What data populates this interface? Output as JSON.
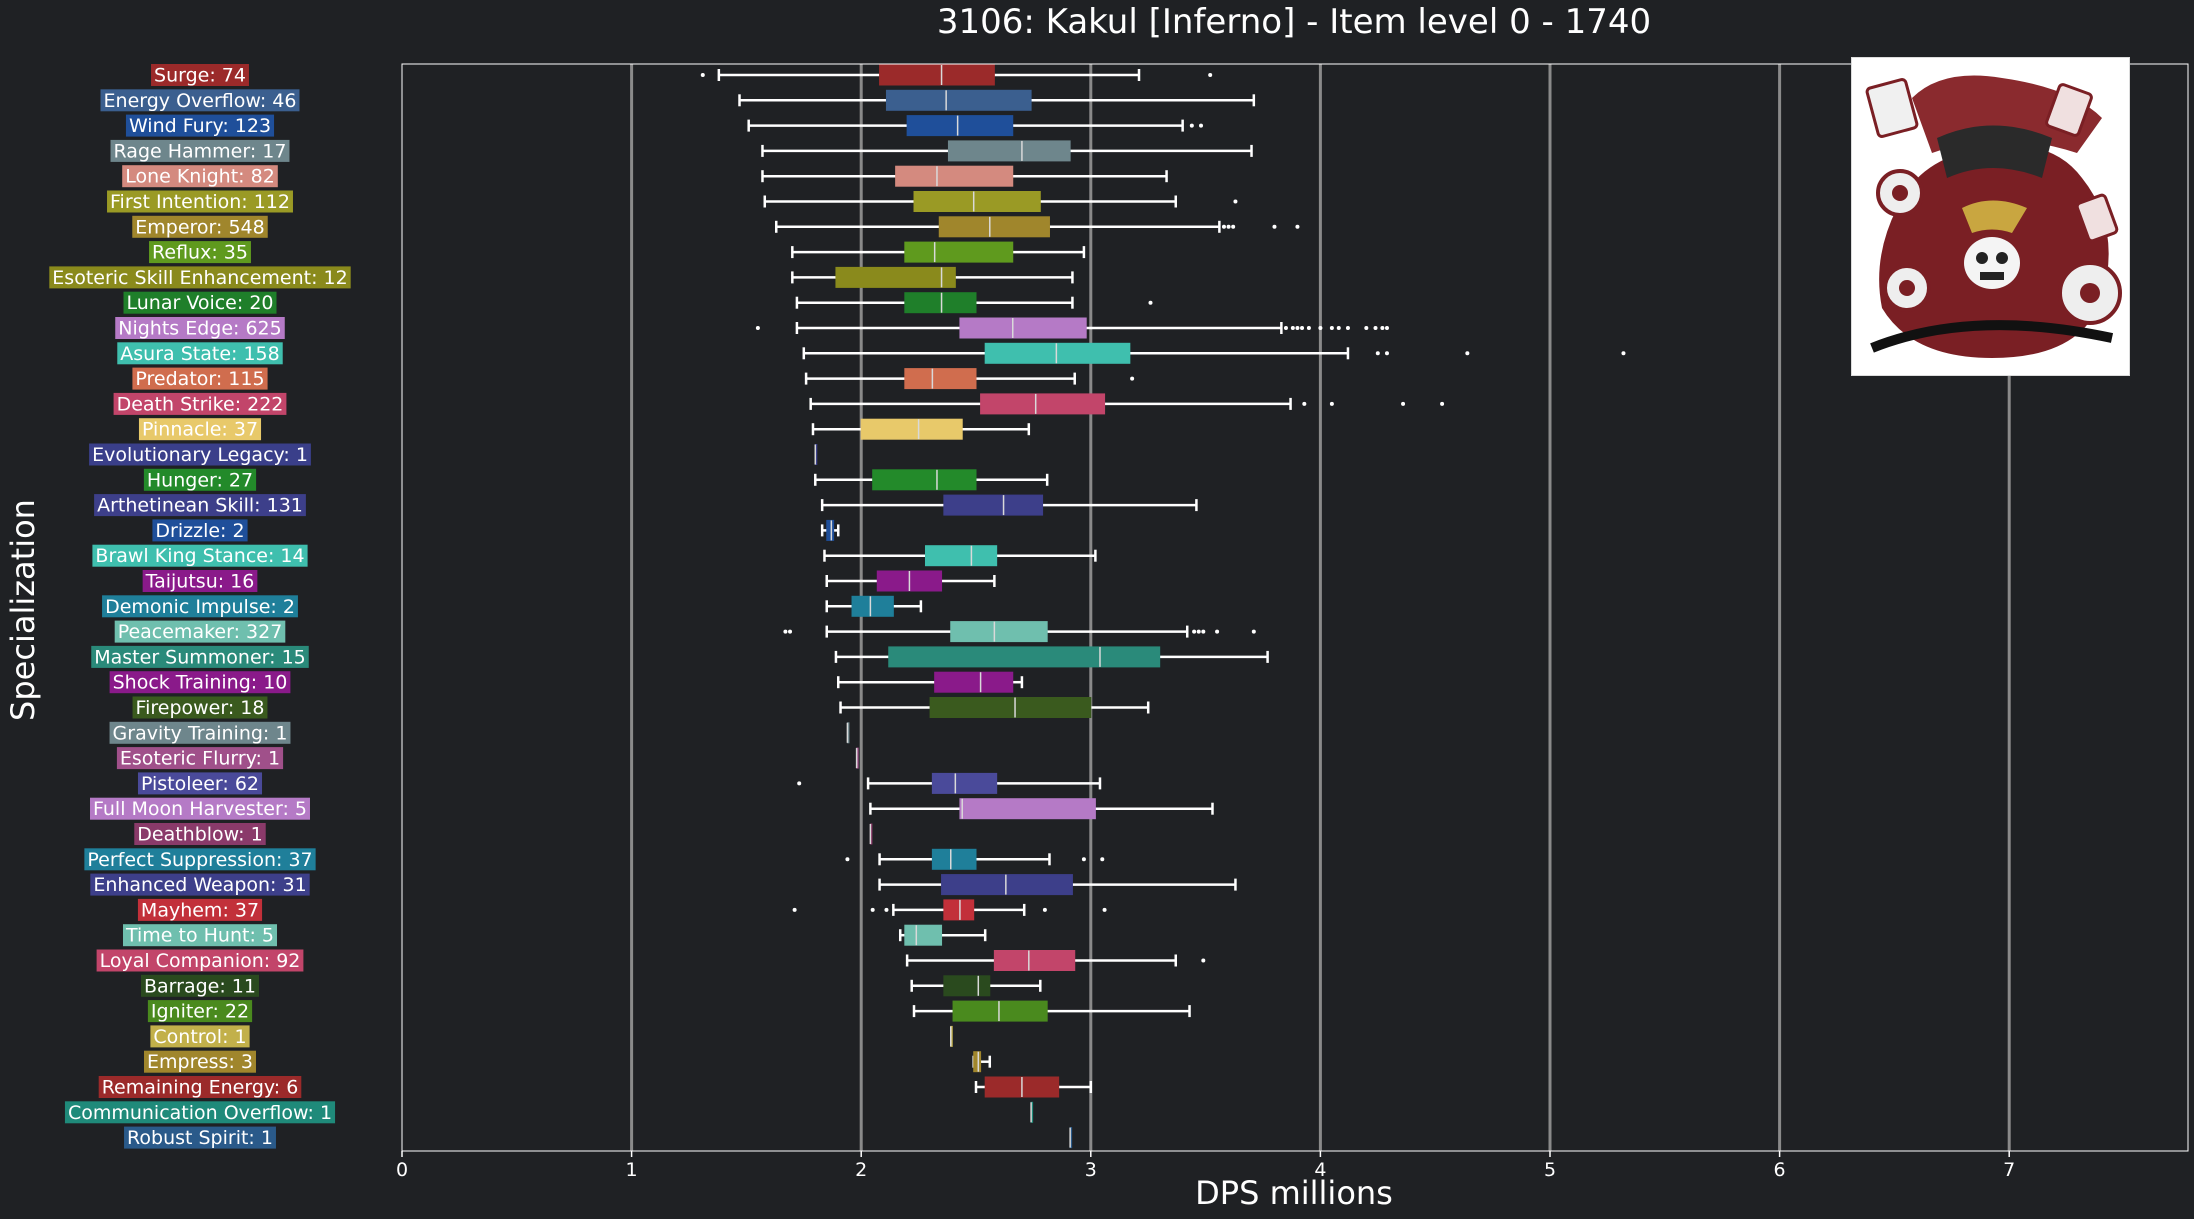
{
  "chart_data": {
    "type": "box",
    "title": "3106: Kakul [Inferno] - Item level 0 - 1740",
    "xlabel": "DPS millions",
    "ylabel": "Specialization",
    "xlim": [
      0,
      7.78
    ],
    "xticks": [
      0,
      1,
      2,
      3,
      4,
      5,
      6,
      7
    ],
    "grid": "vertical lines at 1-7",
    "categories": [
      {
        "label": "Surge: 74",
        "color": "#9b2a2a",
        "stats": {
          "min": 1.38,
          "q1": 2.08,
          "median": 2.35,
          "q3": 2.58,
          "max": 3.21
        },
        "outliers": [
          1.31,
          3.52
        ]
      },
      {
        "label": "Energy Overflow: 46",
        "color": "#3b5f8f",
        "stats": {
          "min": 1.47,
          "q1": 2.11,
          "median": 2.37,
          "q3": 2.74,
          "max": 3.71
        },
        "outliers": []
      },
      {
        "label": "Wind Fury: 123",
        "color": "#1f4f9a",
        "stats": {
          "min": 1.51,
          "q1": 2.2,
          "median": 2.42,
          "q3": 2.66,
          "max": 3.4
        },
        "outliers": [
          3.44,
          3.48
        ]
      },
      {
        "label": "Rage Hammer: 17",
        "color": "#6e868c",
        "stats": {
          "min": 1.57,
          "q1": 2.38,
          "median": 2.7,
          "q3": 2.91,
          "max": 3.7
        },
        "outliers": []
      },
      {
        "label": "Lone Knight: 82",
        "color": "#d48a7f",
        "stats": {
          "min": 1.57,
          "q1": 2.15,
          "median": 2.33,
          "q3": 2.66,
          "max": 3.33
        },
        "outliers": []
      },
      {
        "label": "First Intention: 112",
        "color": "#9a9a25",
        "stats": {
          "min": 1.58,
          "q1": 2.23,
          "median": 2.49,
          "q3": 2.78,
          "max": 3.37
        },
        "outliers": [
          3.63
        ]
      },
      {
        "label": "Emperor: 548",
        "color": "#a0862c",
        "stats": {
          "min": 1.63,
          "q1": 2.34,
          "median": 2.56,
          "q3": 2.82,
          "max": 3.56
        },
        "outliers": [
          3.58,
          3.6,
          3.62,
          3.8,
          3.9
        ]
      },
      {
        "label": "Reflux: 35",
        "color": "#5f9a1e",
        "stats": {
          "min": 1.7,
          "q1": 2.19,
          "median": 2.32,
          "q3": 2.66,
          "max": 2.97
        },
        "outliers": []
      },
      {
        "label": "Esoteric Skill Enhancement: 12",
        "color": "#8a8a1c",
        "stats": {
          "min": 1.7,
          "q1": 1.89,
          "median": 2.35,
          "q3": 2.41,
          "max": 2.92
        },
        "outliers": []
      },
      {
        "label": "Lunar Voice: 20",
        "color": "#1f7f2a",
        "stats": {
          "min": 1.72,
          "q1": 2.19,
          "median": 2.35,
          "q3": 2.5,
          "max": 2.92
        },
        "outliers": [
          3.26
        ]
      },
      {
        "label": "Nights Edge: 625",
        "color": "#b57ac6",
        "stats": {
          "min": 1.72,
          "q1": 2.43,
          "median": 2.66,
          "q3": 2.98,
          "max": 3.83
        },
        "outliers": [
          1.55,
          3.85,
          3.88,
          3.9,
          3.92,
          3.95,
          4.0,
          4.05,
          4.08,
          4.12,
          4.2,
          4.24,
          4.27,
          4.29
        ]
      },
      {
        "label": "Asura State: 158",
        "color": "#3fbfae",
        "stats": {
          "min": 1.75,
          "q1": 2.54,
          "median": 2.85,
          "q3": 3.17,
          "max": 4.12
        },
        "outliers": [
          4.25,
          4.29,
          4.64,
          5.32
        ]
      },
      {
        "label": "Predator: 115",
        "color": "#d06d4e",
        "stats": {
          "min": 1.76,
          "q1": 2.19,
          "median": 2.31,
          "q3": 2.5,
          "max": 2.93
        },
        "outliers": [
          3.18
        ]
      },
      {
        "label": "Death Strike: 222",
        "color": "#c2456a",
        "stats": {
          "min": 1.78,
          "q1": 2.52,
          "median": 2.76,
          "q3": 3.06,
          "max": 3.87
        },
        "outliers": [
          3.93,
          4.05,
          4.36,
          4.53
        ]
      },
      {
        "label": "Pinnacle: 37",
        "color": "#e8c96a",
        "stats": {
          "min": 1.79,
          "q1": 2.0,
          "median": 2.25,
          "q3": 2.44,
          "max": 2.73
        },
        "outliers": []
      },
      {
        "label": "Evolutionary Legacy: 1",
        "color": "#3a3f8a",
        "stats": {
          "min": 1.8,
          "q1": 1.8,
          "median": 1.8,
          "q3": 1.8,
          "max": 1.8
        },
        "outliers": []
      },
      {
        "label": "Hunger: 27",
        "color": "#238a2a",
        "stats": {
          "min": 1.8,
          "q1": 2.05,
          "median": 2.33,
          "q3": 2.5,
          "max": 2.81
        },
        "outliers": []
      },
      {
        "label": "Arthetinean Skill: 131",
        "color": "#3d3f8a",
        "stats": {
          "min": 1.83,
          "q1": 2.36,
          "median": 2.62,
          "q3": 2.79,
          "max": 3.46
        },
        "outliers": []
      },
      {
        "label": "Drizzle: 2",
        "color": "#1f4f9a",
        "stats": {
          "min": 1.83,
          "q1": 1.85,
          "median": 1.87,
          "q3": 1.88,
          "max": 1.9
        },
        "outliers": []
      },
      {
        "label": "Brawl King Stance: 14",
        "color": "#3fbfae",
        "stats": {
          "min": 1.84,
          "q1": 2.28,
          "median": 2.48,
          "q3": 2.59,
          "max": 3.02
        },
        "outliers": []
      },
      {
        "label": "Taijutsu: 16",
        "color": "#8a1a8a",
        "stats": {
          "min": 1.85,
          "q1": 2.07,
          "median": 2.21,
          "q3": 2.35,
          "max": 2.58
        },
        "outliers": []
      },
      {
        "label": "Demonic Impulse: 2",
        "color": "#1f7f9a",
        "stats": {
          "min": 1.85,
          "q1": 1.96,
          "median": 2.04,
          "q3": 2.14,
          "max": 2.26
        },
        "outliers": []
      },
      {
        "label": "Peacemaker: 327",
        "color": "#6fbfae",
        "stats": {
          "min": 1.85,
          "q1": 2.39,
          "median": 2.58,
          "q3": 2.81,
          "max": 3.42
        },
        "outliers": [
          1.67,
          1.69,
          3.45,
          3.47,
          3.49,
          3.55,
          3.71
        ]
      },
      {
        "label": "Master Summoner: 15",
        "color": "#2a8a7a",
        "stats": {
          "min": 1.89,
          "q1": 2.12,
          "median": 3.04,
          "q3": 3.3,
          "max": 3.77
        },
        "outliers": []
      },
      {
        "label": "Shock Training: 10",
        "color": "#8a1a8a",
        "stats": {
          "min": 1.9,
          "q1": 2.32,
          "median": 2.52,
          "q3": 2.66,
          "max": 2.7
        },
        "outliers": []
      },
      {
        "label": "Firepower: 18",
        "color": "#3a5a1e",
        "stats": {
          "min": 1.91,
          "q1": 2.3,
          "median": 2.67,
          "q3": 3.0,
          "max": 3.25
        },
        "outliers": []
      },
      {
        "label": "Gravity Training: 1",
        "color": "#6e868c",
        "stats": {
          "min": 1.94,
          "q1": 1.94,
          "median": 1.94,
          "q3": 1.94,
          "max": 1.94
        },
        "outliers": []
      },
      {
        "label": "Esoteric Flurry: 1",
        "color": "#a0508a",
        "stats": {
          "min": 1.98,
          "q1": 1.98,
          "median": 1.98,
          "q3": 1.98,
          "max": 1.98
        },
        "outliers": []
      },
      {
        "label": "Pistoleer: 62",
        "color": "#4a4a9a",
        "stats": {
          "min": 2.03,
          "q1": 2.31,
          "median": 2.41,
          "q3": 2.59,
          "max": 3.04
        },
        "outliers": [
          1.73
        ]
      },
      {
        "label": "Full Moon Harvester: 5",
        "color": "#b57ac6",
        "stats": {
          "min": 2.04,
          "q1": 2.43,
          "median": 2.44,
          "q3": 3.02,
          "max": 3.53
        },
        "outliers": []
      },
      {
        "label": "Deathblow: 1",
        "color": "#8a3a6a",
        "stats": {
          "min": 2.04,
          "q1": 2.04,
          "median": 2.04,
          "q3": 2.04,
          "max": 2.04
        },
        "outliers": []
      },
      {
        "label": "Perfect Suppression: 37",
        "color": "#1f7f9a",
        "stats": {
          "min": 2.08,
          "q1": 2.31,
          "median": 2.39,
          "q3": 2.5,
          "max": 2.82
        },
        "outliers": [
          1.94,
          2.97,
          3.05
        ]
      },
      {
        "label": "Enhanced Weapon: 31",
        "color": "#3d3f8a",
        "stats": {
          "min": 2.08,
          "q1": 2.35,
          "median": 2.63,
          "q3": 2.92,
          "max": 3.63
        },
        "outliers": []
      },
      {
        "label": "Mayhem: 37",
        "color": "#c2303a",
        "stats": {
          "min": 2.14,
          "q1": 2.36,
          "median": 2.43,
          "q3": 2.49,
          "max": 2.71
        },
        "outliers": [
          1.71,
          2.05,
          2.11,
          2.8,
          3.06
        ]
      },
      {
        "label": "Time to Hunt: 5",
        "color": "#6fbfae",
        "stats": {
          "min": 2.17,
          "q1": 2.19,
          "median": 2.24,
          "q3": 2.35,
          "max": 2.54
        },
        "outliers": []
      },
      {
        "label": "Loyal Companion: 92",
        "color": "#c2456a",
        "stats": {
          "min": 2.2,
          "q1": 2.58,
          "median": 2.73,
          "q3": 2.93,
          "max": 3.37
        },
        "outliers": [
          3.49
        ]
      },
      {
        "label": "Barrage: 11",
        "color": "#2a4a1e",
        "stats": {
          "min": 2.22,
          "q1": 2.36,
          "median": 2.51,
          "q3": 2.56,
          "max": 2.78
        },
        "outliers": []
      },
      {
        "label": "Igniter: 22",
        "color": "#4a8a1e",
        "stats": {
          "min": 2.23,
          "q1": 2.4,
          "median": 2.6,
          "q3": 2.81,
          "max": 3.43
        },
        "outliers": []
      },
      {
        "label": "Control: 1",
        "color": "#c2b04a",
        "stats": {
          "min": 2.39,
          "q1": 2.39,
          "median": 2.39,
          "q3": 2.39,
          "max": 2.39
        },
        "outliers": []
      },
      {
        "label": "Empress: 3",
        "color": "#a0862c",
        "stats": {
          "min": 2.49,
          "q1": 2.49,
          "median": 2.51,
          "q3": 2.52,
          "max": 2.56
        },
        "outliers": []
      },
      {
        "label": "Remaining Energy: 6",
        "color": "#9b2a2a",
        "stats": {
          "min": 2.5,
          "q1": 2.54,
          "median": 2.7,
          "q3": 2.86,
          "max": 3.0
        },
        "outliers": []
      },
      {
        "label": "Communication Overflow: 1",
        "color": "#1f8a7a",
        "stats": {
          "min": 2.74,
          "q1": 2.74,
          "median": 2.74,
          "q3": 2.74,
          "max": 2.74
        },
        "outliers": []
      },
      {
        "label": "Robust Spirit: 1",
        "color": "#2a5a8a",
        "stats": {
          "min": 2.91,
          "q1": 2.91,
          "median": 2.91,
          "q3": 2.91,
          "max": 2.91
        },
        "outliers": []
      }
    ]
  },
  "colors": {
    "background": "#1f2124",
    "text": "#ffffff",
    "gridline": "#8a8a8a",
    "whisker": "#ffffff"
  },
  "images": {
    "boss_portrait": "boss-portrait-image"
  }
}
